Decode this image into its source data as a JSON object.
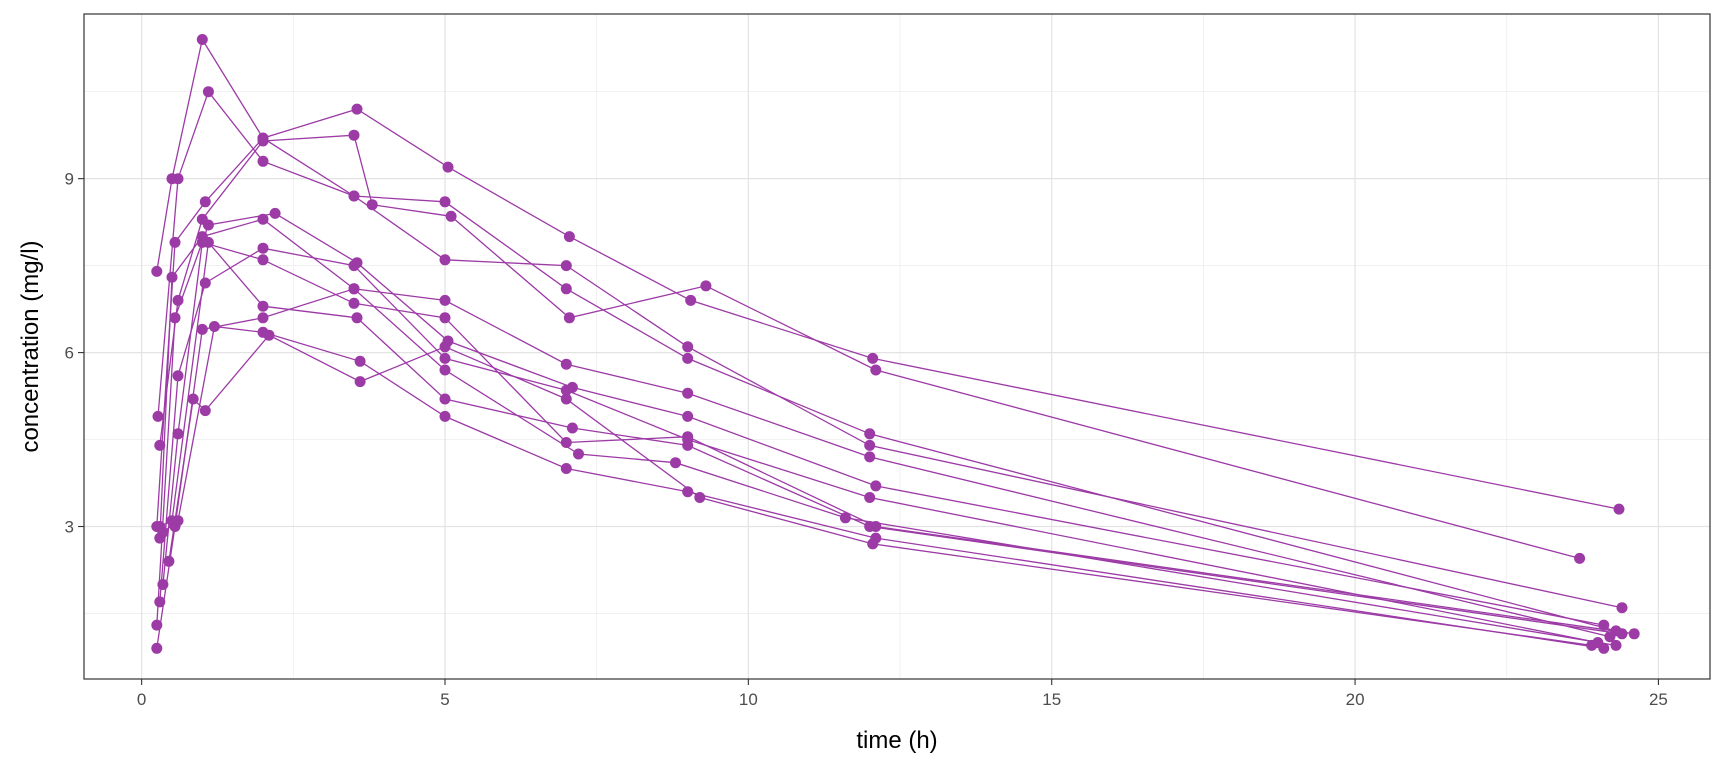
{
  "chart_data": {
    "type": "line",
    "xlabel": "time (h)",
    "ylabel": "concentration (mg/l)",
    "xlim": [
      -0.95,
      25.85
    ],
    "ylim": [
      0.37,
      11.84
    ],
    "x_ticks": [
      0,
      5,
      10,
      15,
      20,
      25
    ],
    "y_ticks": [
      3,
      6,
      9
    ],
    "x_tick_labels": [
      "0",
      "5",
      "10",
      "15",
      "20",
      "25"
    ],
    "y_tick_labels": [
      "3",
      "6",
      "9"
    ],
    "grid": true,
    "color": "#9C3AA6",
    "series": [
      {
        "x": [
          0.25,
          0.5,
          1.0,
          2.0,
          3.5,
          5.0,
          7.0,
          9.0,
          12.0,
          24.3
        ],
        "y": [
          7.4,
          9.0,
          11.4,
          9.7,
          8.7,
          8.6,
          7.1,
          5.9,
          4.6,
          1.2
        ]
      },
      {
        "x": [
          0.27,
          0.6,
          1.1,
          2.0,
          3.5,
          5.0,
          7.0,
          9.0,
          12.0,
          24.4
        ],
        "y": [
          4.9,
          9.0,
          10.5,
          9.3,
          8.7,
          7.6,
          7.5,
          6.1,
          4.4,
          1.6
        ]
      },
      {
        "x": [
          0.25,
          0.55,
          1.05,
          2.0,
          3.55,
          5.05,
          7.05,
          9.05,
          12.05,
          24.35
        ],
        "y": [
          3.0,
          7.9,
          8.6,
          9.7,
          10.2,
          9.2,
          8.0,
          6.9,
          5.9,
          3.3
        ]
      },
      {
        "x": [
          0.3,
          0.6,
          1.0,
          2.0,
          3.5,
          3.8,
          5.1,
          7.05,
          9.3,
          12.1,
          23.7
        ],
        "y": [
          4.4,
          6.9,
          8.3,
          9.65,
          9.75,
          8.55,
          8.35,
          6.6,
          7.15,
          5.7,
          2.45
        ]
      },
      {
        "x": [
          0.3,
          0.5,
          1.0,
          2.0,
          3.5,
          5.0,
          7.0,
          9.0,
          12.0,
          24.2
        ],
        "y": [
          2.8,
          7.3,
          8.0,
          8.3,
          7.1,
          6.9,
          5.8,
          5.3,
          4.2,
          1.1
        ]
      },
      {
        "x": [
          0.25,
          0.55,
          1.1,
          2.2,
          3.55,
          5.05,
          7.1,
          9.0,
          12.1,
          24.1
        ],
        "y": [
          1.3,
          6.6,
          8.2,
          8.4,
          7.55,
          6.2,
          5.4,
          4.9,
          3.7,
          1.3
        ]
      },
      {
        "x": [
          0.3,
          0.6,
          1.05,
          2.0,
          3.5,
          5.0,
          7.0,
          9.0,
          12.0,
          24.0
        ],
        "y": [
          1.7,
          5.6,
          7.2,
          7.8,
          7.5,
          5.9,
          5.35,
          4.5,
          3.5,
          1.0
        ]
      },
      {
        "x": [
          0.35,
          0.6,
          1.0,
          2.0,
          3.5,
          5.0,
          7.0,
          9.0,
          12.1,
          24.6
        ],
        "y": [
          2.0,
          4.6,
          7.9,
          7.6,
          6.85,
          6.6,
          4.45,
          4.55,
          3.0,
          1.15
        ]
      },
      {
        "x": [
          0.3,
          0.5,
          1.1,
          2.0,
          3.55,
          5.0,
          7.1,
          9.0,
          12.0,
          24.4
        ],
        "y": [
          3.0,
          3.1,
          7.9,
          6.8,
          6.6,
          5.2,
          4.7,
          4.4,
          3.0,
          1.15
        ]
      },
      {
        "x": [
          0.25,
          0.55,
          1.0,
          2.0,
          3.5,
          5.0,
          7.2,
          8.8,
          11.6,
          24.3
        ],
        "y": [
          0.9,
          3.0,
          6.4,
          6.6,
          7.1,
          5.7,
          4.25,
          4.1,
          3.15,
          0.95
        ]
      },
      {
        "x": [
          0.35,
          0.6,
          1.2,
          2.0,
          3.6,
          5.0,
          7.0,
          9.0,
          12.1,
          24.1
        ],
        "y": [
          2.9,
          3.1,
          6.45,
          6.35,
          5.85,
          4.9,
          4.0,
          3.6,
          2.8,
          0.9
        ]
      },
      {
        "x": [
          0.45,
          0.85,
          1.05,
          2.1,
          3.6,
          5.0,
          7.0,
          9.2,
          12.05,
          23.9
        ],
        "y": [
          2.4,
          5.2,
          5.0,
          6.3,
          5.5,
          6.1,
          5.2,
          3.5,
          2.7,
          0.95
        ]
      }
    ]
  }
}
